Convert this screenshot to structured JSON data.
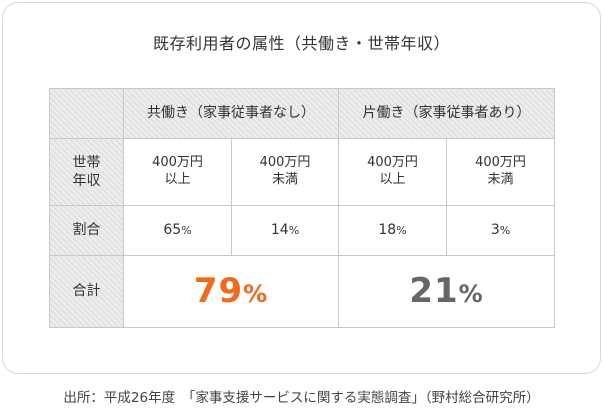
{
  "title": "既存利用者の属性（共働き・世帯年収）",
  "table": {
    "group_headers": [
      "共働き（家事従事者なし）",
      "片働き（家事従事者あり）"
    ],
    "income_label_line1": "世帯",
    "income_label_line2": "年収",
    "income_cols": [
      {
        "line1": "400万円",
        "line2": "以上"
      },
      {
        "line1": "400万円",
        "line2": "未満"
      },
      {
        "line1": "400万円",
        "line2": "以上"
      },
      {
        "line1": "400万円",
        "line2": "未満"
      }
    ],
    "ratio_label": "割合",
    "ratio_values": [
      "65",
      "14",
      "18",
      "3"
    ],
    "percent_sign": "%",
    "total_label": "合計",
    "total_values": [
      "79",
      "21"
    ]
  },
  "colors": {
    "accent_orange": "#f26a1b",
    "total_gray": "#666666",
    "border": "#c8c8c8"
  },
  "source": "出所：平成26年度　「家事支援サービスに関する実態調査」（野村総合研究所）"
}
